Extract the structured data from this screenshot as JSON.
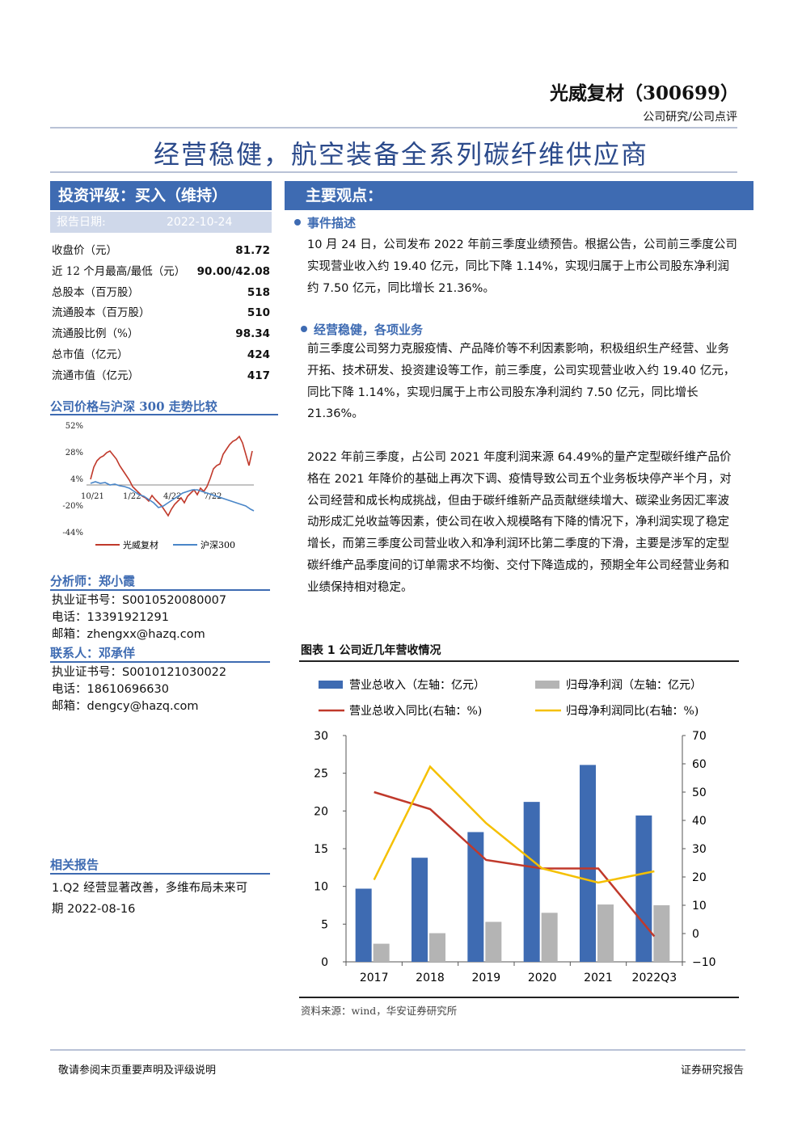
{
  "header": {
    "company": "光威复材（300699）",
    "report_type": "公司研究/公司点评",
    "title": "经营稳健，航空装备全系列碳纤维供应商"
  },
  "rating": {
    "label": "投资评级：买入（维持）",
    "date_label": "报告日期:",
    "date": "2022-10-24"
  },
  "stats": [
    {
      "label": "收盘价（元）",
      "value": "81.72"
    },
    {
      "label": "近 12 个月最高/最低（元）",
      "value": "90.00/42.08"
    },
    {
      "label": "总股本（百万股）",
      "value": "518"
    },
    {
      "label": "流通股本（百万股）",
      "value": "510"
    },
    {
      "label": "流通股比例（%）",
      "value": "98.34"
    },
    {
      "label": "总市值（亿元）",
      "value": "424"
    },
    {
      "label": "流通市值（亿元）",
      "value": "417"
    }
  ],
  "price_chart": {
    "heading": "公司价格与沪深 300 走势比较",
    "y_ticks": [
      "52%",
      "28%",
      "4%",
      "-20%",
      "-44%"
    ],
    "x_ticks": [
      "10/21",
      "1/22",
      "4/22",
      "7/22"
    ],
    "legend": [
      "光威复材",
      "沪深300"
    ],
    "colors": {
      "stock": "#c0392b",
      "index": "#4a86c8"
    }
  },
  "analyst": {
    "heading": "分析师：郑小霞",
    "lines": [
      "执业证书号：S0010520080007",
      "电话：13391921291",
      "邮箱：zhengxx@hazq.com"
    ]
  },
  "contact": {
    "heading": "联系人：邓承佯",
    "lines": [
      "执业证书号：S0010121030022",
      "电话：18610696630",
      "邮箱：dengcy@hazq.com"
    ]
  },
  "related": {
    "heading": "相关报告",
    "line1": "1.Q2 经营显著改善，多维布局未来可",
    "line2": "期 2022-08-16"
  },
  "main": {
    "heading": "主要观点：",
    "sec1_title": "事件描述",
    "sec1_text": "10 月 24 日，公司发布 2022 年前三季度业绩预告。根据公告，公司前三季度公司实现营业收入约 19.40 亿元，同比下降 1.14%，实现归属于上市公司股东净利润约 7.50 亿元，同比增长 21.36%。",
    "sec2_title": "经营稳健，各项业务",
    "sec2_text": "前三季度公司努力克服疫情、产品降价等不利因素影响，积极组织生产经营、业务开拓、技术研发、投资建设等工作，前三季度，公司实现营业收入约 19.40 亿元，同比下降 1.14%，实现归属于上市公司股东净利润约 7.50 亿元，同比增长 21.36%。",
    "para3": "2022 年前三季度，占公司 2021 年度利润来源 64.49%的量产定型碳纤维产品价格在 2021 年降价的基础上再次下调、疫情导致公司五个业务板块停产半个月，对公司经营和成长构成挑战，但由于碳纤维新产品贡献继续增大、碳梁业务因汇率波动形成汇兑收益等因素，使公司在收入规模略有下降的情况下，净利润实现了稳定增长，而第三季度公司营业收入和净利润环比第二季度的下滑，主要是涉军的定型碳纤维产品季度间的订单需求不均衡、交付下降造成的，预期全年公司经营业务和业绩保持相对稳定。"
  },
  "figure": {
    "title": "图表 1 公司近几年营收情况",
    "source": "资料来源：wind，华安证券研究所"
  },
  "chart_data": {
    "type": "bar",
    "categories": [
      "2017",
      "2018",
      "2019",
      "2020",
      "2021",
      "2022Q3"
    ],
    "series": [
      {
        "name": "营业总收入（左轴：亿元）",
        "kind": "bar",
        "axis": "left",
        "color": "#3e6bb2",
        "values": [
          9.7,
          13.8,
          17.2,
          21.2,
          26.1,
          19.4
        ]
      },
      {
        "name": "归母净利润（左轴：亿元）",
        "kind": "bar",
        "axis": "left",
        "color": "#b4b4b4",
        "values": [
          2.4,
          3.8,
          5.3,
          6.5,
          7.6,
          7.5
        ]
      },
      {
        "name": "营业总收入同比(右轴：%)",
        "kind": "line",
        "axis": "right",
        "color": "#c0392b",
        "values": [
          50,
          44,
          26,
          23,
          23,
          -1
        ]
      },
      {
        "name": "归母净利润同比(右轴：%)",
        "kind": "line",
        "axis": "right",
        "color": "#f5c000",
        "values": [
          19,
          59,
          39,
          23,
          18,
          22
        ]
      }
    ],
    "ylim_left": [
      0,
      30
    ],
    "ylim_right": [
      -10,
      70
    ],
    "yticks_left": [
      "0",
      "5",
      "10",
      "15",
      "20",
      "25",
      "30"
    ],
    "yticks_right": [
      "−10",
      "0",
      "10",
      "20",
      "30",
      "40",
      "50",
      "60",
      "70"
    ]
  },
  "footer": {
    "left": "敬请参阅末页重要声明及评级说明",
    "right": "证券研究报告"
  }
}
